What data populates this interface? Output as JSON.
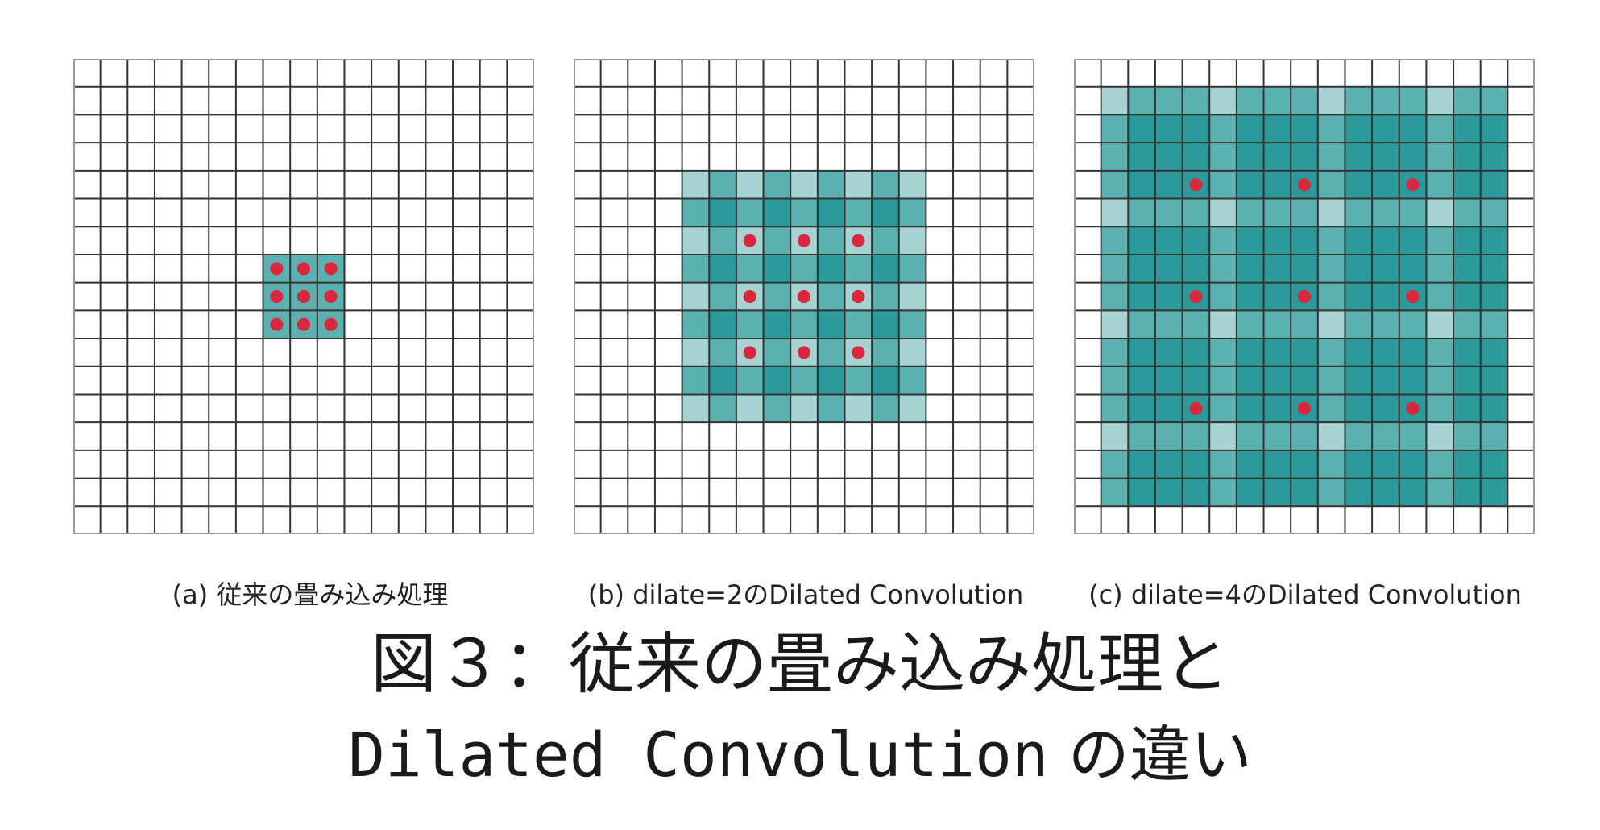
{
  "figure": {
    "title_line1": "図３：従来の畳み込み処理と",
    "title_line2_latin": "Dilated Convolution",
    "title_line2_suffix": "の違い"
  },
  "panels": [
    {
      "id": "a",
      "caption": "(a) 従来の畳み込み処理",
      "grid_size": 17,
      "dilation": 1,
      "kernel_size": 3,
      "center": [
        8,
        8
      ]
    },
    {
      "id": "b",
      "caption": "(b) dilate=2のDilated  Convolution",
      "grid_size": 17,
      "dilation": 2,
      "kernel_size": 3,
      "center": [
        8,
        8
      ]
    },
    {
      "id": "c",
      "caption": "(c) dilate=4のDilated  Convolution",
      "grid_size": 17,
      "dilation": 4,
      "kernel_size": 3,
      "center": [
        8,
        8
      ]
    }
  ],
  "colors": {
    "grid_line": "#333333",
    "border": "#9a9a9a",
    "shade_light": "#a8d3d3",
    "shade_mid": "#5bb0b0",
    "shade_dark": "#2b9a9a",
    "kernel_dot": "#d8283f",
    "background": "#ffffff"
  }
}
